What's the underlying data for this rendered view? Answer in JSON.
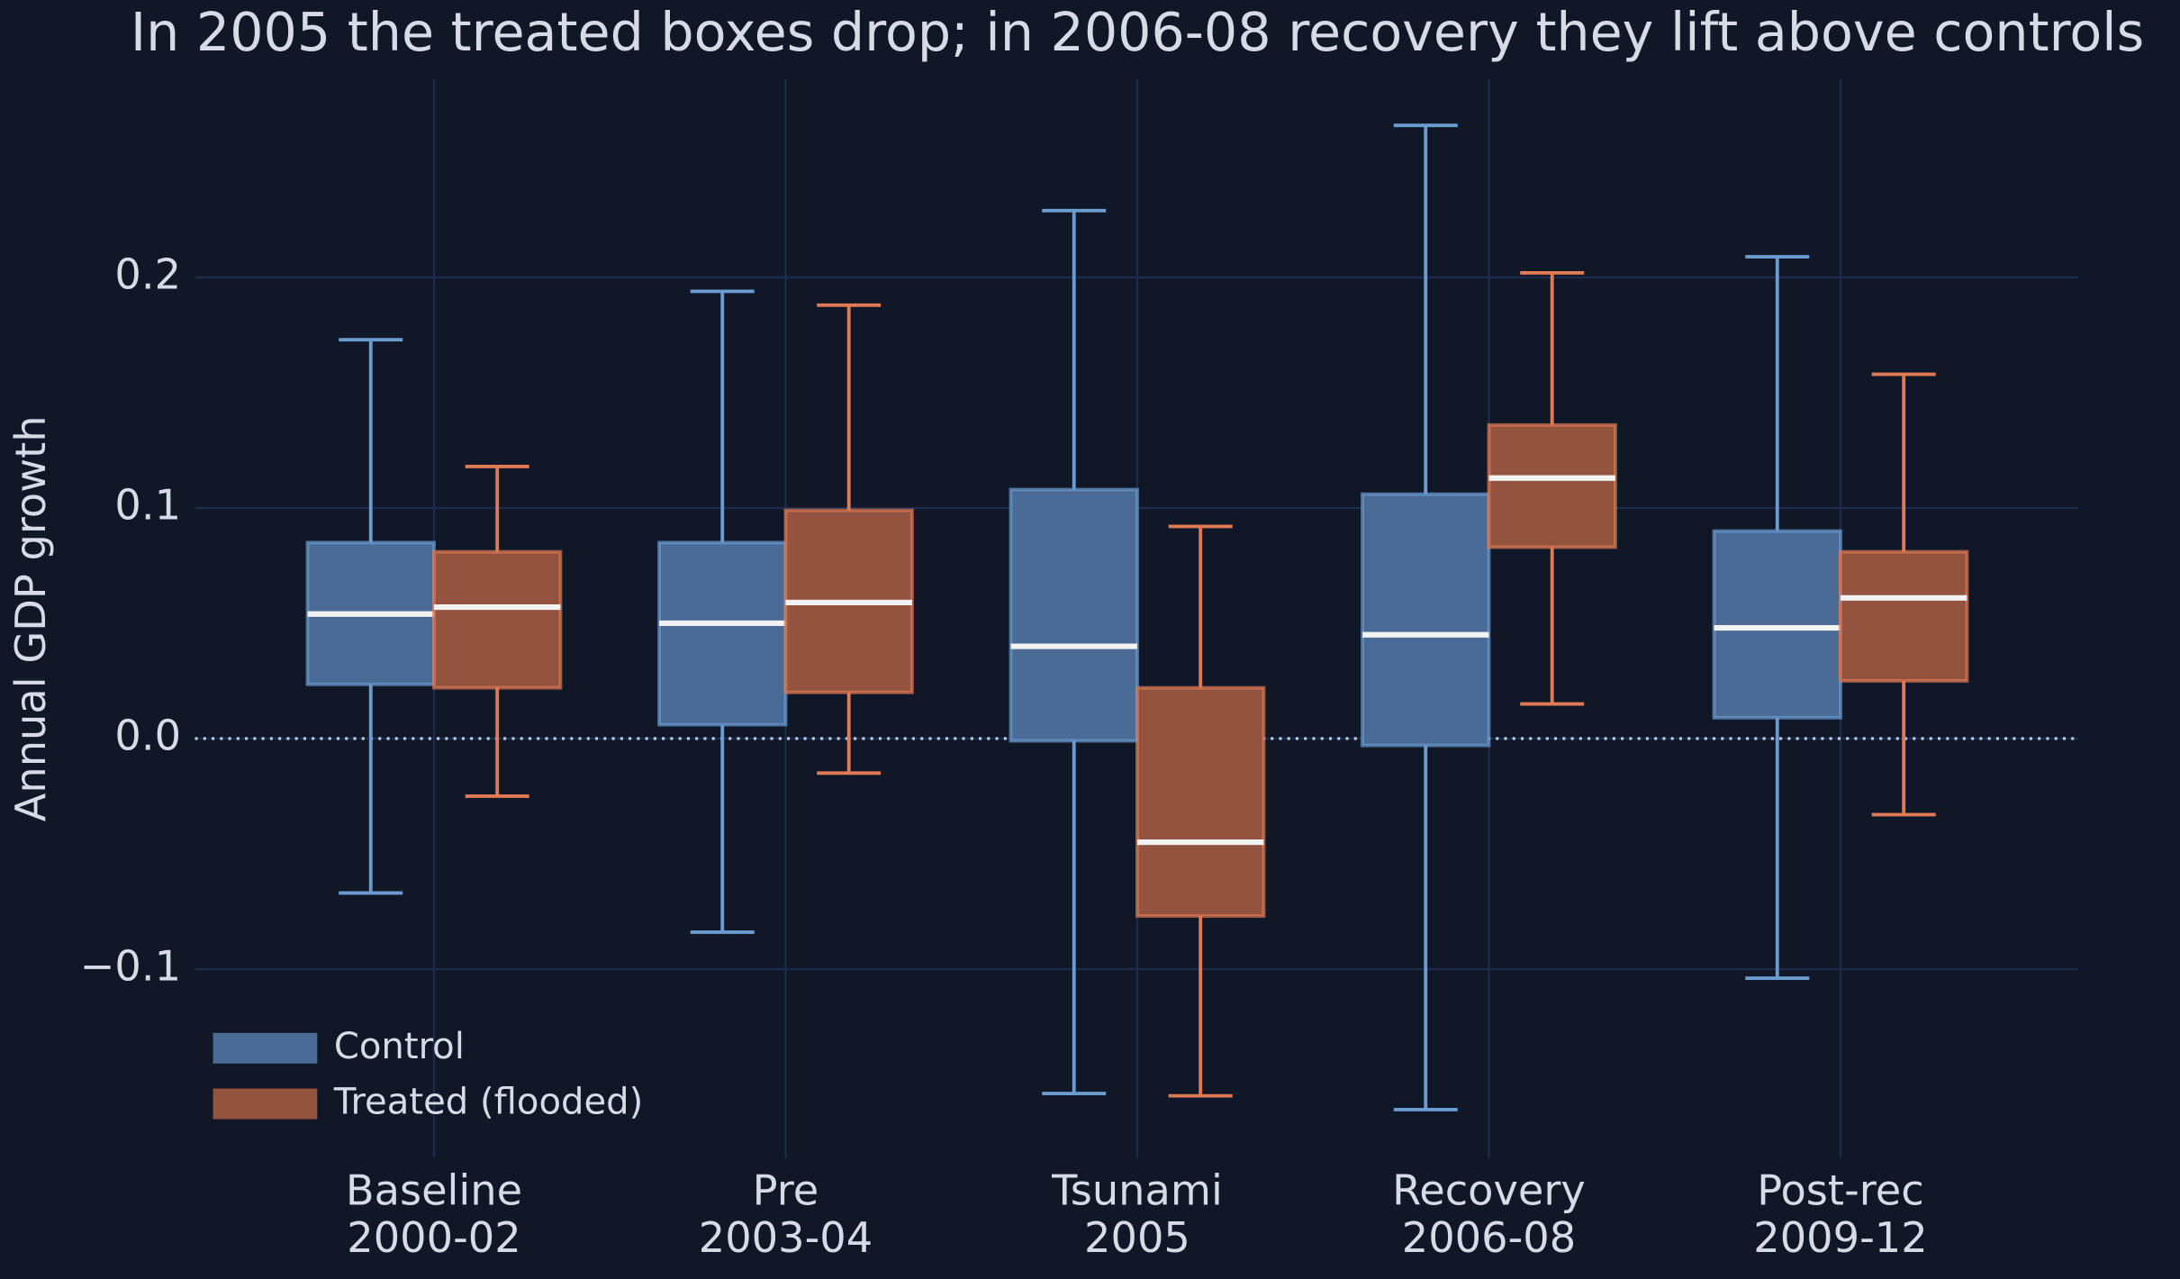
{
  "chart_data": {
    "type": "box",
    "title": "In 2005 the treated boxes drop; in 2006-08 recovery they lift above controls",
    "ylabel": "Annual GDP growth",
    "categories": [
      [
        "Baseline",
        "2000-02"
      ],
      [
        "Pre",
        "2003-04"
      ],
      [
        "Tsunami",
        "2005"
      ],
      [
        "Recovery",
        "2006-08"
      ],
      [
        "Post-rec",
        "2009-12"
      ]
    ],
    "series": [
      {
        "name": "Control",
        "color": "#6a9bd1",
        "fill": "#4a6b95",
        "whislo": [
          -0.067,
          -0.084,
          -0.154,
          -0.161,
          -0.104
        ],
        "q1": [
          0.0235,
          0.006,
          -0.001,
          -0.003,
          0.009
        ],
        "med": [
          0.054,
          0.05,
          0.04,
          0.045,
          0.048
        ],
        "q3": [
          0.085,
          0.085,
          0.108,
          0.106,
          0.09
        ],
        "whishi": [
          0.173,
          0.194,
          0.229,
          0.266,
          0.209
        ]
      },
      {
        "name": "Treated (flooded)",
        "color": "#e07a55",
        "fill": "#94533f",
        "whislo": [
          -0.025,
          -0.015,
          -0.155,
          0.015,
          -0.033
        ],
        "q1": [
          0.022,
          0.02,
          -0.077,
          0.083,
          0.025
        ],
        "med": [
          0.057,
          0.059,
          -0.045,
          0.113,
          0.061
        ],
        "q3": [
          0.081,
          0.099,
          0.022,
          0.136,
          0.081
        ],
        "whishi": [
          0.118,
          0.188,
          0.092,
          0.202,
          0.158
        ]
      }
    ],
    "ylim": [
      -0.182,
      0.286
    ],
    "yticks": [
      {
        "value": -0.1,
        "label": "−0.1"
      },
      {
        "value": 0,
        "label": "0.0"
      },
      0.1,
      0.2
    ],
    "hline": 0,
    "grid": true,
    "legend": "lower left"
  }
}
